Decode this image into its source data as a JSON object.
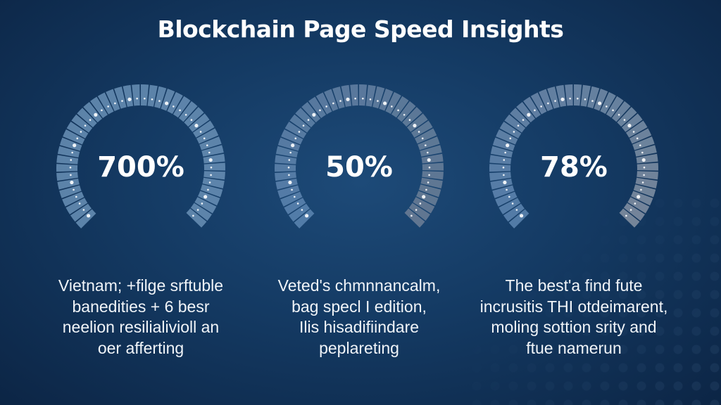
{
  "title": "Blockchain Page Speed Insights",
  "gauges": [
    {
      "value": "700%",
      "color": "#6a90b6",
      "end_color": "#6a90b6"
    },
    {
      "value": "50%",
      "color": "#5d86b2",
      "end_color": "#6e7f95"
    },
    {
      "value": "78%",
      "color": "#5d86b2",
      "end_color": "#8893a3"
    }
  ],
  "descriptions": [
    {
      "lines": [
        "Vietnam; +filge srftuble",
        "banedities + 6 besr",
        "neelion resilialivioll an",
        "oer afferting"
      ]
    },
    {
      "lines": [
        "Veted's chmnnancalm,",
        "bag specl I edition,",
        "Ilis hisadifiindare",
        "peplareting"
      ]
    },
    {
      "lines": [
        "The best'a find fute",
        "incrusitis THI otdeimarent,",
        "moling sottion srity and",
        "ftue namerun"
      ]
    }
  ]
}
